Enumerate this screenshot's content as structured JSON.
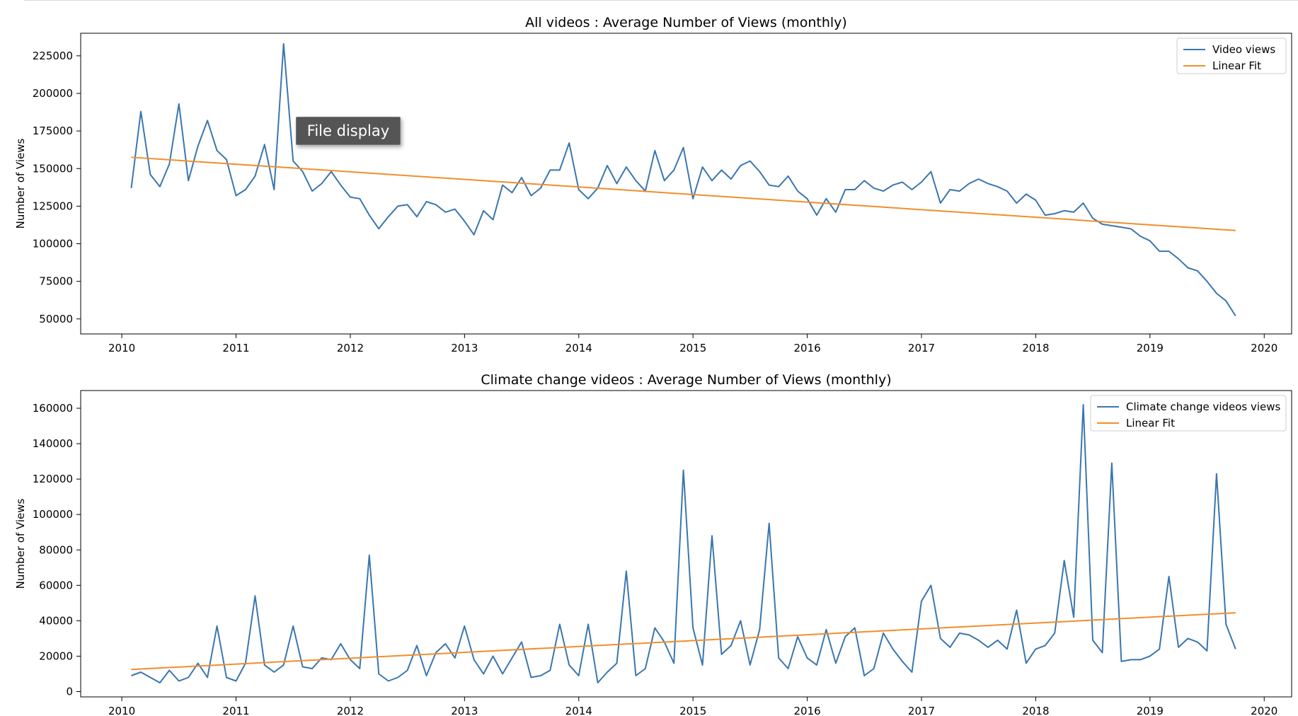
{
  "tooltip": {
    "text": "File display"
  },
  "colors": {
    "series": "#3a76af",
    "fit": "#f28e2b"
  },
  "chart_data": [
    {
      "type": "line",
      "title": "All videos : Average Number of Views (monthly)",
      "xlabel": "",
      "ylabel": "Number of Views",
      "xlim": [
        2009.64,
        2020.24
      ],
      "ylim": [
        40000,
        240000
      ],
      "x_ticks": [
        "2010",
        "2011",
        "2012",
        "2013",
        "2014",
        "2015",
        "2016",
        "2017",
        "2018",
        "2019",
        "2020"
      ],
      "y_ticks": [
        50000,
        75000,
        100000,
        125000,
        150000,
        175000,
        200000,
        225000
      ],
      "legend_position": "top-right",
      "x_start": 2010.083,
      "x_step": 0.08333,
      "series": [
        {
          "name": "Video views",
          "color": "#3a76af",
          "values": [
            137000,
            188000,
            146000,
            138000,
            153000,
            193000,
            142000,
            165000,
            182000,
            162000,
            156000,
            132000,
            136000,
            145000,
            166000,
            136000,
            233000,
            155000,
            148000,
            135000,
            140000,
            148000,
            139000,
            131000,
            130000,
            119000,
            110000,
            118000,
            125000,
            126000,
            118000,
            128000,
            126000,
            121000,
            123000,
            115000,
            106000,
            122000,
            116000,
            139000,
            134000,
            144000,
            132000,
            137000,
            149000,
            149000,
            167000,
            136000,
            130000,
            137000,
            152000,
            140000,
            151000,
            142000,
            135000,
            162000,
            142000,
            149000,
            164000,
            130000,
            151000,
            142000,
            149000,
            143000,
            152000,
            155000,
            148000,
            139000,
            138000,
            145000,
            135000,
            130000,
            119000,
            130000,
            121000,
            136000,
            136000,
            142000,
            137000,
            135000,
            139000,
            141000,
            136000,
            141000,
            148000,
            127000,
            136000,
            135000,
            140000,
            143000,
            140000,
            138000,
            135000,
            127000,
            133000,
            129000,
            119000,
            120000,
            122000,
            121000,
            127000,
            117000,
            113000,
            112000,
            111000,
            110000,
            105000,
            102000,
            95000,
            95000,
            90000,
            84000,
            82000,
            75000,
            67000,
            62000,
            52000
          ]
        },
        {
          "name": "Linear Fit",
          "color": "#f28e2b",
          "line": {
            "x": [
              2010.083,
              2019.75
            ],
            "y": [
              157500,
              108800
            ]
          }
        }
      ]
    },
    {
      "type": "line",
      "title": "Climate change videos : Average Number of Views (monthly)",
      "xlabel": "",
      "ylabel": "Number of Views",
      "xlim": [
        2009.64,
        2020.24
      ],
      "ylim": [
        -3000,
        170000
      ],
      "x_ticks": [
        "2010",
        "2011",
        "2012",
        "2013",
        "2014",
        "2015",
        "2016",
        "2017",
        "2018",
        "2019",
        "2020"
      ],
      "y_ticks": [
        0,
        20000,
        40000,
        60000,
        80000,
        100000,
        120000,
        140000,
        160000
      ],
      "legend_position": "top-right",
      "x_start": 2010.083,
      "x_step": 0.08333,
      "series": [
        {
          "name": "Climate change videos views",
          "color": "#3a76af",
          "values": [
            9000,
            11000,
            8000,
            5000,
            12000,
            6000,
            8000,
            16000,
            8000,
            37000,
            8000,
            6000,
            16000,
            54000,
            15000,
            11000,
            15000,
            37000,
            14000,
            13000,
            19000,
            18000,
            27000,
            18000,
            13000,
            77000,
            10000,
            6000,
            8000,
            12000,
            26000,
            9000,
            22000,
            27000,
            19000,
            37000,
            18000,
            10000,
            20000,
            10000,
            19000,
            28000,
            8000,
            9000,
            12000,
            38000,
            15000,
            9000,
            38000,
            5000,
            11000,
            16000,
            68000,
            9000,
            13000,
            36000,
            28000,
            16000,
            125000,
            36000,
            15000,
            88000,
            21000,
            26000,
            40000,
            15000,
            35000,
            95000,
            19000,
            13000,
            31000,
            19000,
            15000,
            35000,
            16000,
            31000,
            36000,
            9000,
            13000,
            33000,
            24000,
            17000,
            11000,
            51000,
            60000,
            30000,
            25000,
            33000,
            32000,
            29000,
            25000,
            29000,
            24000,
            46000,
            16000,
            24000,
            26000,
            33000,
            74000,
            42000,
            162000,
            29000,
            22000,
            129000,
            17000,
            18000,
            18000,
            20000,
            24000,
            65000,
            25000,
            30000,
            28000,
            23000,
            123000,
            38000,
            24000
          ]
        },
        {
          "name": "Linear Fit",
          "color": "#f28e2b",
          "line": {
            "x": [
              2010.083,
              2019.75
            ],
            "y": [
              12500,
              44500
            ]
          }
        }
      ]
    }
  ]
}
